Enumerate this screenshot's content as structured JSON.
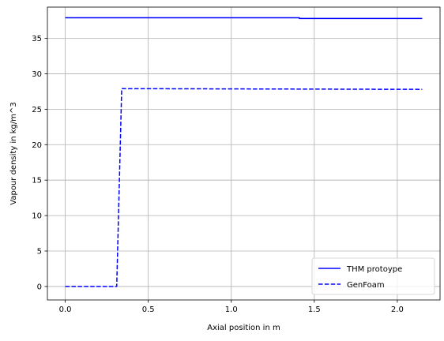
{
  "chart_data": {
    "type": "line",
    "title": "",
    "xlabel": "Axial position in m",
    "ylabel": "Vapour density in kg/m^3",
    "xlim": [
      -0.1075,
      2.2575
    ],
    "ylim": [
      -1.9,
      39.4
    ],
    "xticks": [
      0.0,
      0.5,
      1.0,
      1.5,
      2.0
    ],
    "xtick_labels": [
      "0.0",
      "0.5",
      "1.0",
      "1.5",
      "2.0"
    ],
    "yticks": [
      0,
      5,
      10,
      15,
      20,
      25,
      30,
      35
    ],
    "ytick_labels": [
      "0",
      "5",
      "10",
      "15",
      "20",
      "25",
      "30",
      "35"
    ],
    "grid": true,
    "legend_position": "lower-right",
    "series": [
      {
        "name": "THM protoype",
        "color": "#0000ff",
        "style": "solid",
        "x": [
          0.0,
          1.41,
          1.41,
          2.15
        ],
        "y": [
          37.9,
          37.9,
          37.8,
          37.8
        ]
      },
      {
        "name": "GenFoam",
        "color": "#0000ff",
        "style": "dashed",
        "x": [
          0.0,
          0.31,
          0.34,
          2.15
        ],
        "y": [
          0.0,
          0.0,
          27.9,
          27.8
        ]
      }
    ]
  }
}
